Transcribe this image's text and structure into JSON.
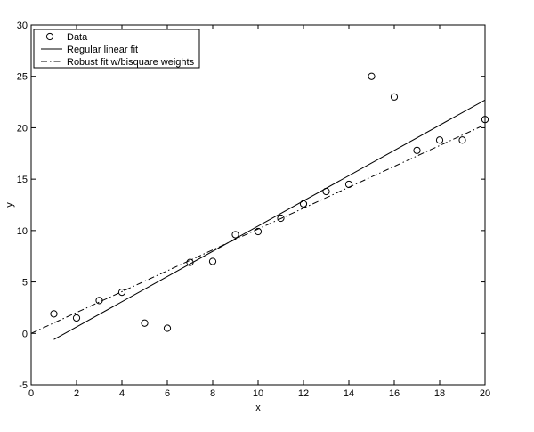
{
  "chart_data": {
    "type": "scatter",
    "xlabel": "x",
    "ylabel": "y",
    "xlim": [
      0,
      20
    ],
    "ylim": [
      -5,
      30
    ],
    "xticks": [
      0,
      2,
      4,
      6,
      8,
      10,
      12,
      14,
      16,
      18,
      20
    ],
    "yticks": [
      -5,
      0,
      5,
      10,
      15,
      20,
      25,
      30
    ],
    "grid": false,
    "legend_position": "top-left",
    "series": [
      {
        "name": "Data",
        "style": "markers",
        "marker": "circle",
        "x": [
          1,
          2,
          3,
          4,
          5,
          6,
          7,
          8,
          9,
          10,
          11,
          12,
          13,
          14,
          15,
          16,
          17,
          18,
          19,
          20
        ],
        "y": [
          1.9,
          1.5,
          3.2,
          4.0,
          1.0,
          0.5,
          6.9,
          7.0,
          9.6,
          9.9,
          11.2,
          12.6,
          13.8,
          14.5,
          25.0,
          23.0,
          17.8,
          18.8,
          18.8,
          20.8
        ]
      },
      {
        "name": "Regular linear fit",
        "style": "solid",
        "x": [
          1,
          20
        ],
        "y": [
          -0.6,
          22.7
        ]
      },
      {
        "name": "Robust fit w/bisquare weights",
        "style": "dashdot",
        "x": [
          0,
          20
        ],
        "y": [
          0.0,
          20.3
        ]
      }
    ]
  }
}
